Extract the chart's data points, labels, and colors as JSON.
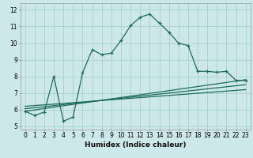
{
  "title": "",
  "xlabel": "Humidex (Indice chaleur)",
  "bg_color": "#cce8e8",
  "grid_color": "#aacfcf",
  "line_color": "#1e6b5e",
  "xlim": [
    -0.5,
    23.5
  ],
  "ylim": [
    4.8,
    12.4
  ],
  "xticks": [
    0,
    1,
    2,
    3,
    4,
    5,
    6,
    7,
    8,
    9,
    10,
    11,
    12,
    13,
    14,
    15,
    16,
    17,
    18,
    19,
    20,
    21,
    22,
    23
  ],
  "yticks": [
    5,
    6,
    7,
    8,
    9,
    10,
    11,
    12
  ],
  "main_x": [
    0,
    1,
    2,
    3,
    4,
    5,
    6,
    7,
    8,
    9,
    10,
    11,
    12,
    13,
    14,
    15,
    16,
    17,
    18,
    19,
    20,
    21,
    22,
    23
  ],
  "main_y": [
    5.9,
    5.65,
    5.85,
    8.0,
    5.3,
    5.55,
    8.2,
    9.6,
    9.3,
    9.4,
    10.15,
    11.05,
    11.55,
    11.75,
    11.2,
    10.65,
    10.0,
    9.85,
    8.3,
    8.3,
    8.25,
    8.3,
    7.75,
    7.75
  ],
  "line1_x0": 0,
  "line1_x1": 23,
  "line1_y0": 5.9,
  "line1_y1": 7.8,
  "line2_x0": 0,
  "line2_x1": 23,
  "line2_y0": 6.05,
  "line2_y1": 7.5,
  "line3_x0": 0,
  "line3_x1": 23,
  "line3_y0": 6.2,
  "line3_y1": 7.2,
  "xlabel_fontsize": 6.5,
  "tick_fontsize": 5.5
}
